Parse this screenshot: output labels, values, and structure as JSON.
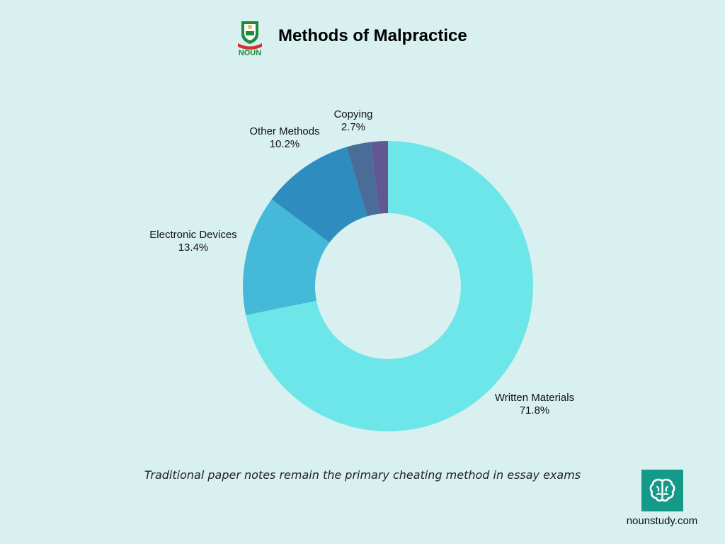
{
  "header": {
    "logo_text": "NOUN",
    "title": "Methods of Malpractice"
  },
  "chart_data": {
    "type": "pie",
    "donut": true,
    "title": "Methods of Malpractice",
    "slices": [
      {
        "label": "Written Materials",
        "value": 71.8,
        "value_label": "71.8%",
        "color": "#6de6e9"
      },
      {
        "label": "Electronic Devices",
        "value": 13.4,
        "value_label": "13.4%",
        "color": "#44b9d8"
      },
      {
        "label": "Other Methods",
        "value": 10.2,
        "value_label": "10.2%",
        "color": "#2e8cbf"
      },
      {
        "label": "Copying",
        "value": 2.7,
        "value_label": "2.7%",
        "color": "#4a6c99"
      },
      {
        "label": "",
        "value": 1.9,
        "value_label": "",
        "color": "#615892"
      }
    ]
  },
  "caption": "Traditional paper notes remain the primary cheating method in essay exams",
  "brand": {
    "icon": "brain-icon",
    "site": "nounstudy.com",
    "color": "#159a8a"
  }
}
